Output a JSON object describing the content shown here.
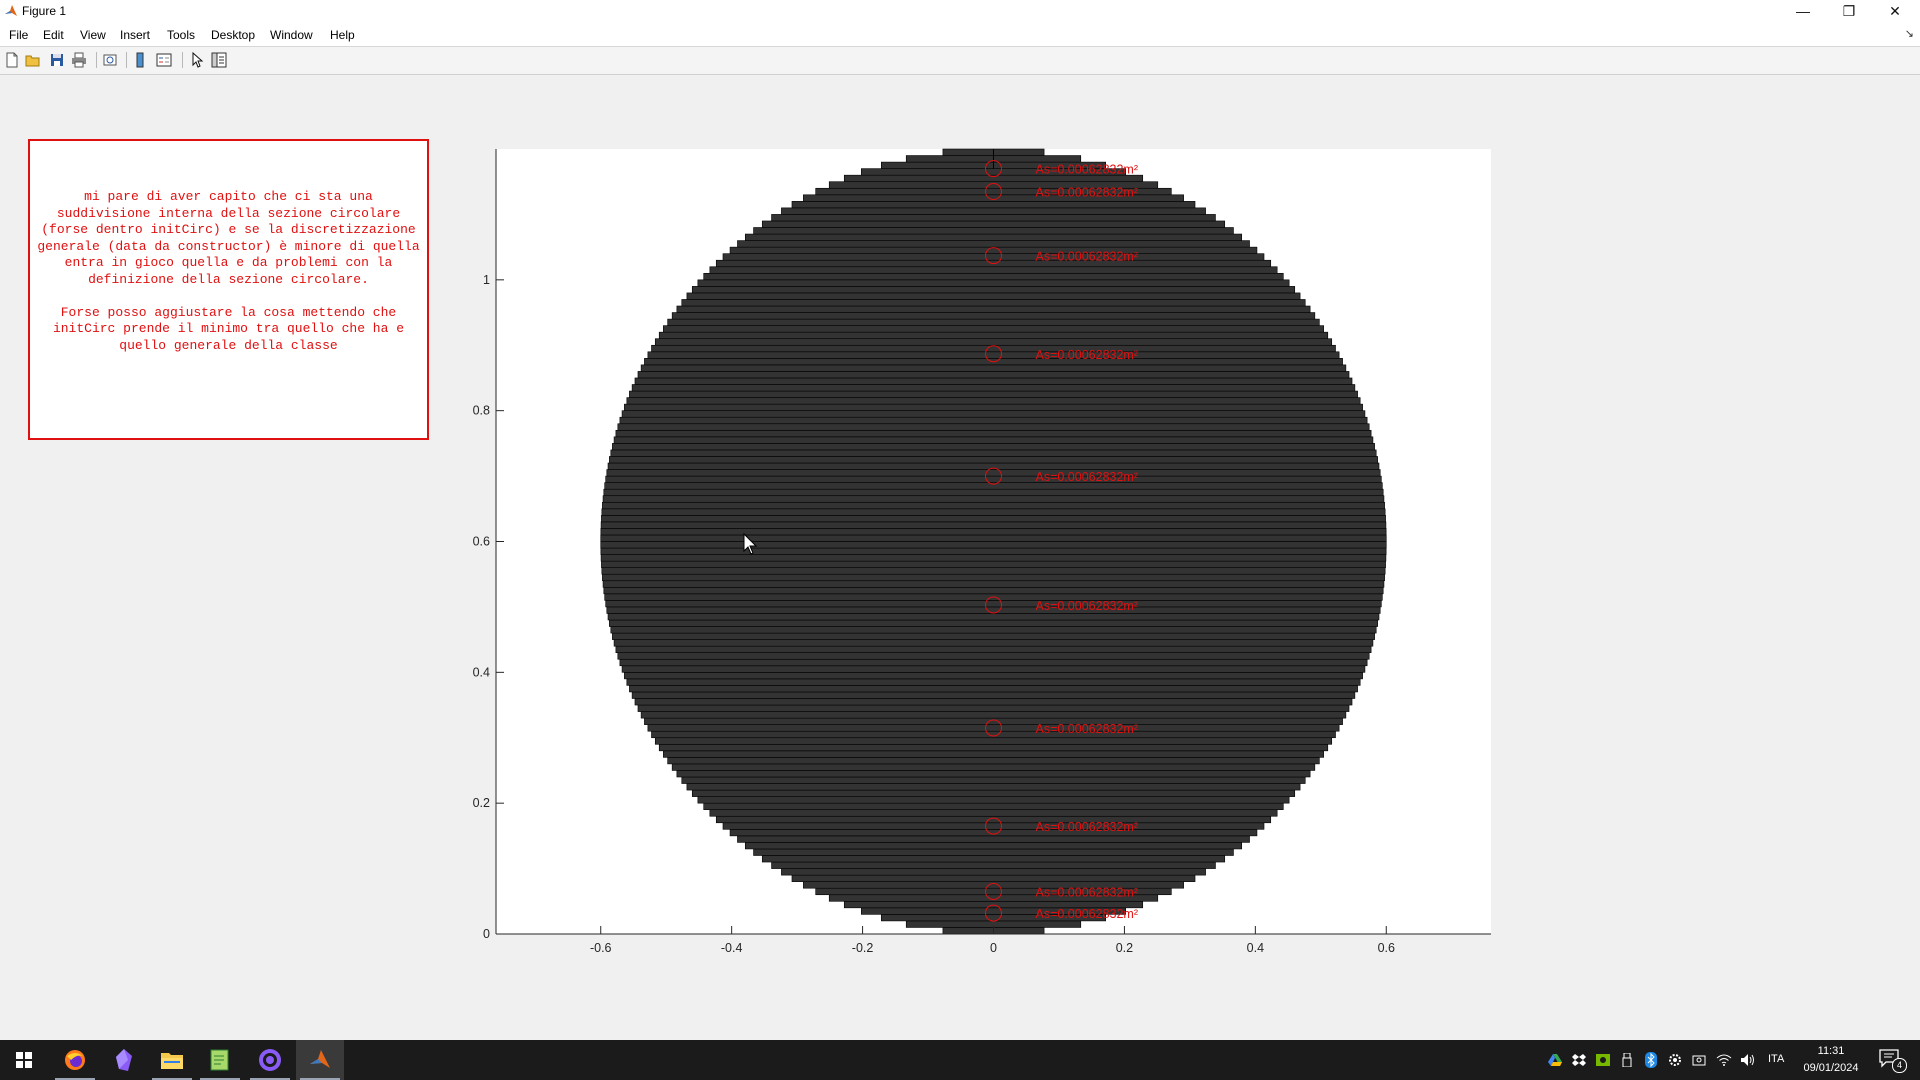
{
  "window": {
    "title": "Figure 1",
    "minimize_label": "—",
    "restore_label": "❐",
    "close_label": "✕"
  },
  "menubar": {
    "items": [
      "File",
      "Edit",
      "View",
      "Insert",
      "Tools",
      "Desktop",
      "Window",
      "Help"
    ],
    "undock_label": "↘"
  },
  "toolbar": {
    "icons": [
      "new-figure-icon",
      "open-file-icon",
      "save-icon",
      "print-icon",
      "link-plot-icon",
      "insert-colorbar-icon",
      "insert-legend-icon",
      "edit-plot-arrow-icon",
      "property-inspector-icon"
    ]
  },
  "annotation": {
    "text": "mi pare di aver capito che ci sta una\nsuddivisione interna della sezione circolare\n(forse dentro initCirc) e se la discretizzazione\ngenerale (data da constructor) è minore di quella\nentra in gioco quella e da problemi con la\ndefinizione della sezione circolare.\n\nForse posso aggiustare la cosa mettendo che\ninitCirc prende il minimo tra quello che ha e\nquello generale della classe",
    "color": "#e01010"
  },
  "chart_data": {
    "type": "scatter",
    "description_shape": "circular cross-section discretized into horizontal strips",
    "section": {
      "center": [
        0,
        0.6
      ],
      "radius": 0.6
    },
    "strips": 120,
    "fill_color": "#333333",
    "strip_line_color": "#000000",
    "xlim": [
      -0.76,
      0.76
    ],
    "ylim": [
      0,
      1.2
    ],
    "xticks": [
      -0.6,
      -0.4,
      -0.2,
      0,
      0.2,
      0.4,
      0.6
    ],
    "yticks": [
      0,
      0.2,
      0.4,
      0.6,
      0.8,
      1
    ],
    "xlabel": "",
    "ylabel": "",
    "rebar": {
      "marker": "circle",
      "color": "#e01010",
      "label": "As=0.00062832m²",
      "points": [
        {
          "x": 0,
          "y": 1.17
        },
        {
          "x": 0,
          "y": 1.135
        },
        {
          "x": 0,
          "y": 1.037
        },
        {
          "x": 0,
          "y": 0.887
        },
        {
          "x": 0,
          "y": 0.7
        },
        {
          "x": 0,
          "y": 0.503
        },
        {
          "x": 0,
          "y": 0.315
        },
        {
          "x": 0,
          "y": 0.165
        },
        {
          "x": 0,
          "y": 0.065
        },
        {
          "x": 0,
          "y": 0.032
        }
      ]
    }
  },
  "taskbar": {
    "apps": [
      "windows-start-icon",
      "firefox-icon",
      "obsidian-icon",
      "file-explorer-icon",
      "notepad-plus-icon",
      "github-desktop-icon",
      "matlab-icon"
    ],
    "tray_icons": [
      "google-drive-icon",
      "dropbox-icon",
      "nvidia-icon",
      "usb-icon",
      "bluetooth-icon",
      "settings-gear-icon",
      "camera-icon",
      "wifi-icon",
      "volume-icon"
    ],
    "language": "ITA",
    "time": "11:31",
    "date": "09/01/2024",
    "notifications_count": "4"
  }
}
